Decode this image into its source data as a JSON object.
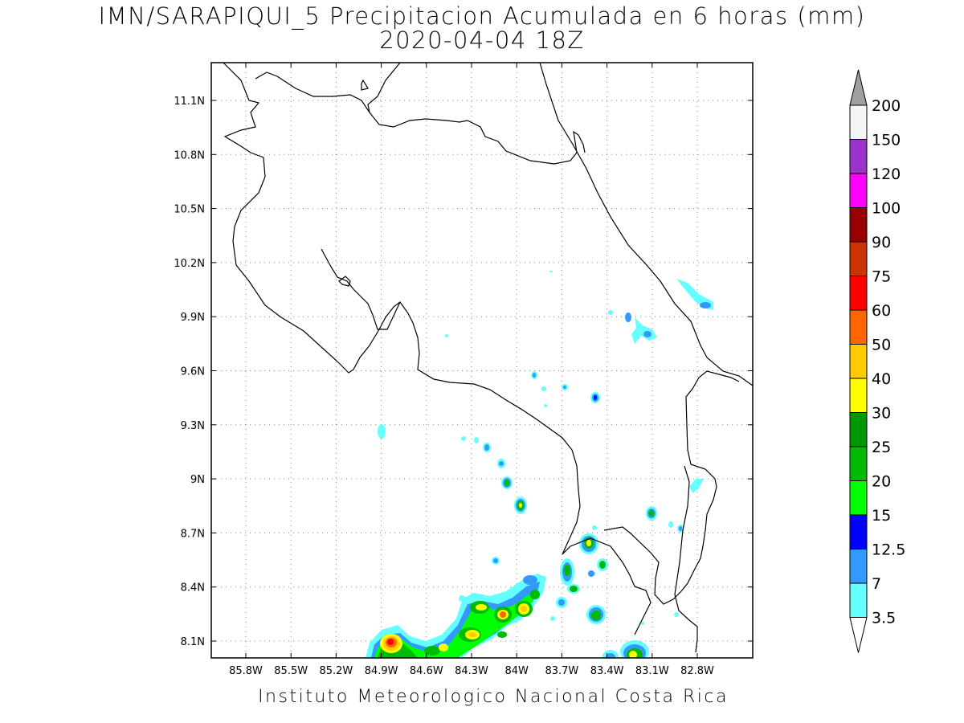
{
  "title": {
    "line1": "IMN/SARAPIQUI_5 Precipitacion Acumulada en 6 horas (mm)",
    "line2": "2020-04-04 18Z"
  },
  "footer": "Instituto Meteorologico Nacional Costa Rica",
  "map": {
    "lon_range": [
      -86.0,
      -82.4
    ],
    "lat_range": [
      8.0,
      11.25
    ],
    "grid": true,
    "lon_ticks": [
      "85.8W",
      "85.5W",
      "85.2W",
      "84.9W",
      "84.6W",
      "84.3W",
      "84W",
      "83.7W",
      "83.4W",
      "83.1W",
      "82.8W"
    ],
    "lat_ticks": [
      "11.1N",
      "10.8N",
      "10.5N",
      "10.2N",
      "9.9N",
      "9.6N",
      "9.3N",
      "9N",
      "8.7N",
      "8.4N",
      "8.1N"
    ]
  },
  "colorbar": {
    "labels": [
      "200",
      "150",
      "120",
      "100",
      "90",
      "75",
      "60",
      "50",
      "40",
      "30",
      "25",
      "20",
      "15",
      "12.5",
      "7",
      "3.5"
    ],
    "colors": [
      "#f5f5f5",
      "#9933cc",
      "#ff00ff",
      "#990000",
      "#cc3300",
      "#ff0000",
      "#ff6600",
      "#ffcc00",
      "#ffff00",
      "#009900",
      "#00bb00",
      "#00ff00",
      "#0000ff",
      "#3399ff",
      "#66ffff"
    ],
    "top_arrow_color": "#a0a0a0",
    "bottom_arrow_color": "#ffffff"
  },
  "precip_levels": {
    "l3_5": "#66ffff",
    "l7": "#3399ff",
    "l12_5": "#0000ff",
    "l15": "#00ff00",
    "l20": "#00bb00",
    "l25": "#009900",
    "l30": "#ffff00",
    "l40": "#ffcc00",
    "l50": "#ff6600",
    "l60": "#ff0000"
  }
}
